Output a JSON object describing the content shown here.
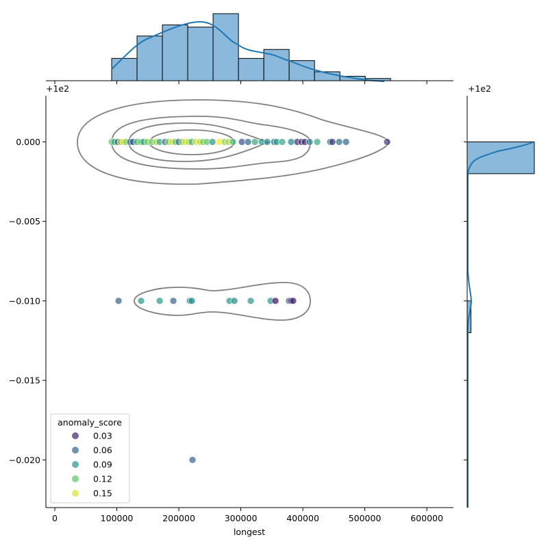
{
  "chart_data": {
    "type": "scatter",
    "kind": "jointplot with kde contours and marginal histograms",
    "xlabel": "longest",
    "ylabel": "",
    "offset_label": "+1e2",
    "xlim": [
      -14400,
      643000
    ],
    "ylim": [
      -0.023,
      0.0029
    ],
    "x_ticks": [
      0,
      100000,
      200000,
      300000,
      400000,
      500000,
      600000
    ],
    "x_tick_labels": [
      "0",
      "100000",
      "200000",
      "300000",
      "400000",
      "500000",
      "600000"
    ],
    "y_ticks": [
      0,
      -0.005,
      -0.01,
      -0.015,
      -0.02
    ],
    "y_tick_labels": [
      "0.000",
      "−0.005",
      "−0.010",
      "−0.015",
      "−0.020"
    ],
    "hue": "anomaly_score",
    "colormap": "viridis",
    "hue_range": [
      0.015,
      0.158
    ],
    "legend": {
      "title": "anomaly_score",
      "placement": "lower-left",
      "entries": [
        "0.03",
        "0.06",
        "0.09",
        "0.12",
        "0.15"
      ],
      "values": [
        0.03,
        0.06,
        0.09,
        0.12,
        0.15
      ]
    },
    "points": [
      [
        91700,
        0,
        0.12
      ],
      [
        96100,
        0,
        0.1
      ],
      [
        101700,
        0,
        0.05
      ],
      [
        106100,
        0,
        0.14
      ],
      [
        110500,
        0,
        0.15
      ],
      [
        114900,
        0,
        0.13
      ],
      [
        121500,
        0,
        0.07
      ],
      [
        126000,
        0,
        0.05
      ],
      [
        132600,
        0,
        0.11
      ],
      [
        139200,
        0,
        0.12
      ],
      [
        143600,
        0,
        0.09
      ],
      [
        149200,
        0,
        0.13
      ],
      [
        156900,
        0,
        0.12
      ],
      [
        163500,
        0,
        0.14
      ],
      [
        169100,
        0,
        0.1
      ],
      [
        177900,
        0,
        0.06
      ],
      [
        183400,
        0,
        0.13
      ],
      [
        189000,
        0,
        0.15
      ],
      [
        194500,
        0,
        0.12
      ],
      [
        200000,
        0,
        0.06
      ],
      [
        205500,
        0,
        0.13
      ],
      [
        210000,
        0,
        0.15
      ],
      [
        215500,
        0,
        0.14
      ],
      [
        221000,
        0,
        0.1
      ],
      [
        227600,
        0,
        0.15
      ],
      [
        234300,
        0,
        0.14
      ],
      [
        238700,
        0,
        0.13
      ],
      [
        245300,
        0,
        0.12
      ],
      [
        254200,
        0,
        0.09
      ],
      [
        265200,
        0,
        0.16
      ],
      [
        274000,
        0,
        0.13
      ],
      [
        279600,
        0,
        0.14
      ],
      [
        287300,
        0,
        0.11
      ],
      [
        301700,
        0,
        0.05
      ],
      [
        311600,
        0,
        0.06
      ],
      [
        322700,
        0,
        0.1
      ],
      [
        333700,
        0,
        0.09
      ],
      [
        342600,
        0,
        0.08
      ],
      [
        353600,
        0,
        0.07
      ],
      [
        358000,
        0,
        0.09
      ],
      [
        366800,
        0,
        0.1
      ],
      [
        381200,
        0,
        0.08
      ],
      [
        391100,
        0,
        0.03
      ],
      [
        397800,
        0,
        0.04
      ],
      [
        403300,
        0,
        0.03
      ],
      [
        411000,
        0,
        0.08
      ],
      [
        423200,
        0,
        0.1
      ],
      [
        444200,
        0,
        0.07
      ],
      [
        447700,
        0,
        0.04
      ],
      [
        458700,
        0,
        0.07
      ],
      [
        469700,
        0,
        0.06
      ],
      [
        535900,
        0,
        0.04
      ],
      [
        102800,
        -0.01,
        0.06
      ],
      [
        139200,
        -0.01,
        0.09
      ],
      [
        169100,
        -0.01,
        0.09
      ],
      [
        191200,
        -0.01,
        0.06
      ],
      [
        217700,
        -0.01,
        0.09
      ],
      [
        221000,
        -0.01,
        0.08
      ],
      [
        281800,
        -0.01,
        0.09
      ],
      [
        289500,
        -0.01,
        0.08
      ],
      [
        316000,
        -0.01,
        0.09
      ],
      [
        348100,
        -0.01,
        0.09
      ],
      [
        355800,
        -0.01,
        0.02
      ],
      [
        377900,
        -0.01,
        0.05
      ],
      [
        381200,
        -0.01,
        0.04
      ],
      [
        384500,
        -0.01,
        0.03
      ],
      [
        222100,
        -0.02,
        0.06
      ]
    ],
    "marginal_x_hist": {
      "bin_edges": [
        91700,
        132600,
        173500,
        214400,
        255300,
        296200,
        337100,
        378000,
        418900,
        459800,
        500700,
        541600
      ],
      "counts": [
        10,
        20,
        25,
        24,
        30,
        10,
        14,
        9,
        4,
        2,
        1
      ]
    },
    "marginal_y_hist": {
      "bins": [
        [
          -0.002,
          0
        ],
        [
          -0.012,
          -0.01
        ],
        [
          -0.02,
          -0.018
        ]
      ],
      "counts": [
        140,
        8,
        1
      ]
    },
    "colors": {
      "hist_fill": "#8ab9db",
      "kde_line": "#1f77b4",
      "contour": "#808080"
    }
  }
}
